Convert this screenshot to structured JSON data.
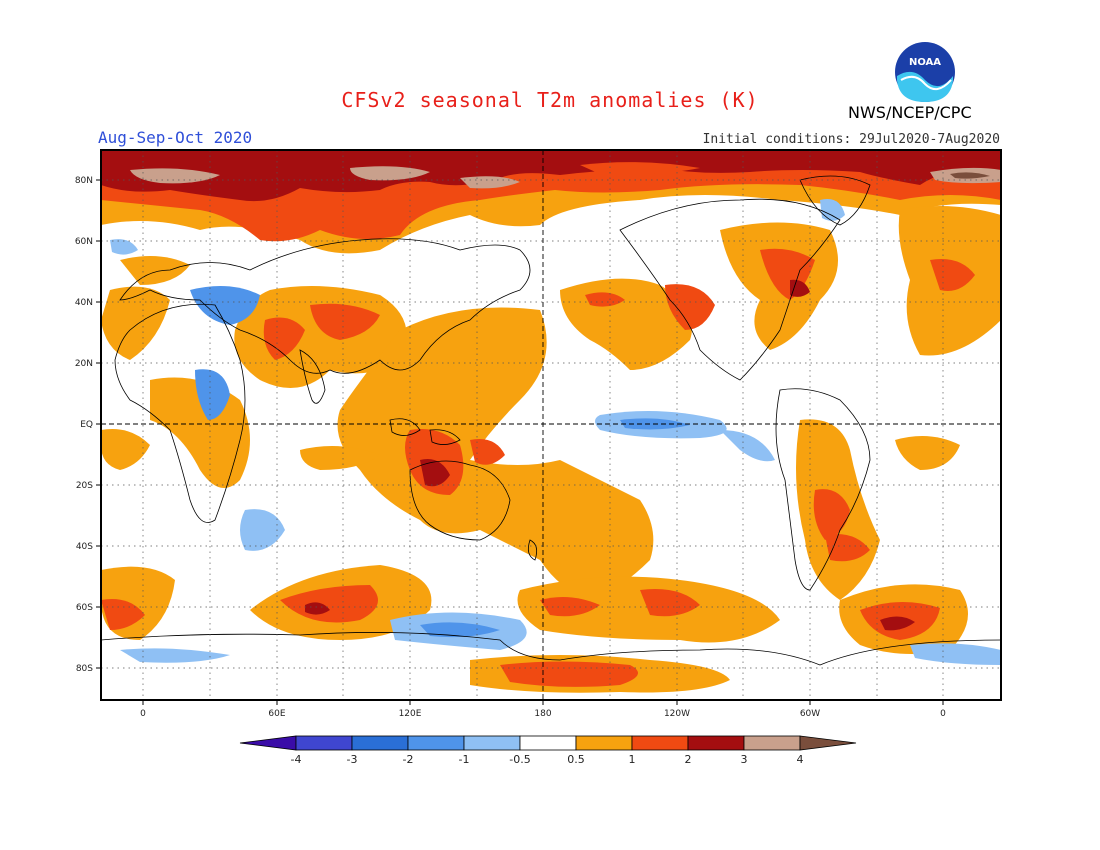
{
  "header": {
    "title": "CFSv2 seasonal T2m anomalies (K)",
    "season": "Aug-Sep-Oct 2020",
    "initial_conditions": "Initial conditions: 29Jul2020-7Aug2020",
    "agency": "NWS/NCEP/CPC",
    "logo_text": "NOAA"
  },
  "axes": {
    "lat_labels": [
      "80N",
      "60N",
      "40N",
      "20N",
      "EQ",
      "20S",
      "40S",
      "60S",
      "80S"
    ],
    "lon_labels": [
      "0",
      "60E",
      "120E",
      "180",
      "120W",
      "60W",
      "0"
    ]
  },
  "colorbar": {
    "labels": [
      "-4",
      "-3",
      "-2",
      "-1",
      "-0.5",
      "0.5",
      "1",
      "2",
      "3",
      "4"
    ],
    "colors": [
      "#3a0ca8",
      "#3f46d0",
      "#2a6fd6",
      "#4f94ea",
      "#8fc0f4",
      "#ffffff",
      "#f7a20f",
      "#f04a12",
      "#a40e10",
      "#c9a08c",
      "#7a4e3c"
    ]
  }
}
